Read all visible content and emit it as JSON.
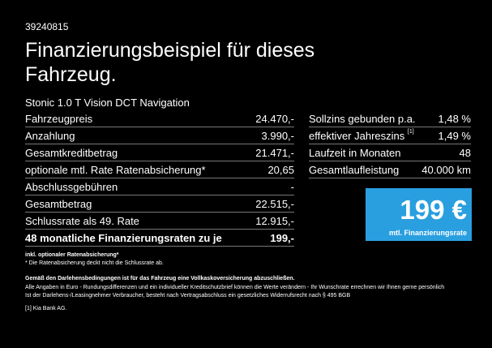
{
  "id_number": "39240815",
  "headline": "Finanzierungsbeispiel für dieses Fahrzeug.",
  "model": "Stonic 1.0 T Vision DCT Navigation",
  "left_rows": [
    {
      "label": "Fahrzeugpreis",
      "value": "24.470,-"
    },
    {
      "label": "Anzahlung",
      "value": "3.990,-"
    },
    {
      "label": "Gesamtkreditbetrag",
      "value": "21.471,-"
    },
    {
      "label": "optionale mtl. Rate Ratenabsicherung*",
      "value": "20,65"
    },
    {
      "label": "Abschlussgebühren",
      "value": "-"
    },
    {
      "label": "Gesamtbetrag",
      "value": "22.515,-"
    },
    {
      "label": "Schlussrate als 49. Rate",
      "value": "12.915,-"
    },
    {
      "label": "48 monatliche Finanzierungsraten zu je",
      "value": "199,-"
    }
  ],
  "right_rows": [
    {
      "label": "Sollzins gebunden p.a.",
      "sup": "",
      "value": "1,48 %"
    },
    {
      "label": "effektiver Jahreszins",
      "sup": "[1]",
      "value": "1,49 %"
    },
    {
      "label": "Laufzeit in Monaten",
      "sup": "",
      "value": "48"
    },
    {
      "label": "Gesamtlaufleistung",
      "sup": "",
      "value": "40.000 km"
    }
  ],
  "rate_box": {
    "amount": "199 €",
    "label": "mtl. Finanzierungsrate",
    "color": "#2a9fe0"
  },
  "notes": {
    "inkl": "inkl. optionaler Ratenabsicherung*",
    "ratenabsicherung": "* Die Ratenabsicherung deckt nicht die Schlussrate ab.",
    "darlehen": "Gemäß den Darlehensbedingungen ist für das Fahrzeug eine Vollkaskoversicherung abzuschließen.",
    "angaben1": "Alle Angaben in Euro - Rundungsdifferenzen und ein individueller Kreditschutzbrief können die Werte verändern - Ihr Wunschrate errechnen wir Ihnen gerne persönlich",
    "angaben2": "Ist der Darlehens-/Leasingnehmer Verbraucher, besteht nach Vertragsabschluss ein gesetzliches Widerrufsrecht nach § 495 BGB",
    "footnote": "[1]  Kia Bank AG."
  }
}
